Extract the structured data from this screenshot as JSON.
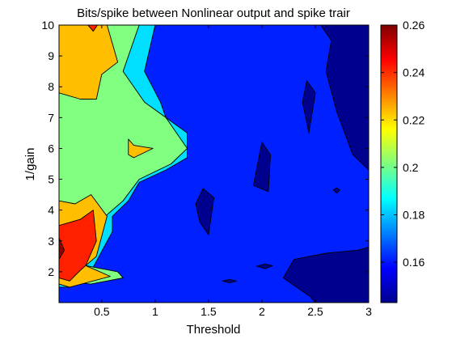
{
  "chart_data": {
    "type": "heatmap",
    "subtype": "filled-contour",
    "title": "Bits/spike between Nonlinear output and spike trair",
    "xlabel": "Threshold",
    "ylabel": "1/gain",
    "xlim": [
      0.1,
      3
    ],
    "ylim": [
      1,
      10
    ],
    "xticks": [
      "0.5",
      "1",
      "1.5",
      "2",
      "2.5",
      "3"
    ],
    "yticks": [
      "2",
      "3",
      "4",
      "5",
      "6",
      "7",
      "8",
      "9",
      "10"
    ],
    "colorbar": {
      "colormap": "jet",
      "range": [
        0.143,
        0.26
      ],
      "ticks": [
        "0.16",
        "0.18",
        "0.2",
        "0.22",
        "0.24",
        "0.26"
      ]
    },
    "levels": [
      {
        "level": 0.143,
        "color": "#00008f"
      },
      {
        "level": 0.15,
        "color": "#0020ff"
      },
      {
        "level": 0.165,
        "color": "#00dfff"
      },
      {
        "level": 0.19,
        "color": "#80ff80"
      },
      {
        "level": 0.215,
        "color": "#ffbf00"
      },
      {
        "level": 0.24,
        "color": "#ff2000"
      },
      {
        "level": 0.255,
        "color": "#8f0000"
      }
    ],
    "regions": [
      {
        "level": 0.143,
        "shape": [
          [
            2.55,
            10
          ],
          [
            3,
            10
          ],
          [
            3,
            5.3
          ],
          [
            2.85,
            5.8
          ],
          [
            2.7,
            7.2
          ],
          [
            2.6,
            8.5
          ],
          [
            2.65,
            9.5
          ]
        ]
      },
      {
        "level": 0.143,
        "shape": [
          [
            2.42,
            8.2
          ],
          [
            2.5,
            7.8
          ],
          [
            2.44,
            6.5
          ],
          [
            2.38,
            7.5
          ]
        ]
      },
      {
        "level": 0.143,
        "shape": [
          [
            2,
            6.2
          ],
          [
            2.08,
            5.8
          ],
          [
            2.06,
            4.6
          ],
          [
            1.92,
            4.8
          ]
        ]
      },
      {
        "level": 0.143,
        "shape": [
          [
            1.45,
            4.7
          ],
          [
            1.55,
            4.4
          ],
          [
            1.5,
            3.2
          ],
          [
            1.42,
            3.6
          ],
          [
            1.38,
            4.2
          ]
        ]
      },
      {
        "level": 0.143,
        "shape": [
          [
            3,
            2.8
          ],
          [
            2.9,
            2.7
          ],
          [
            2.6,
            2.6
          ],
          [
            2.3,
            2.4
          ],
          [
            2.2,
            1.8
          ],
          [
            2.45,
            1.2
          ],
          [
            2.5,
            1
          ],
          [
            3,
            1
          ]
        ]
      },
      {
        "level": 0.143,
        "shape": [
          [
            1.7,
            1.75
          ],
          [
            1.76,
            1.7
          ],
          [
            1.7,
            1.64
          ],
          [
            1.63,
            1.7
          ]
        ]
      },
      {
        "level": 0.143,
        "shape": [
          [
            2.03,
            2.25
          ],
          [
            2.1,
            2.2
          ],
          [
            2.03,
            2.1
          ],
          [
            1.95,
            2.18
          ]
        ]
      },
      {
        "level": 0.143,
        "shape": [
          [
            2.7,
            4.72
          ],
          [
            2.73,
            4.65
          ],
          [
            2.7,
            4.55
          ],
          [
            2.67,
            4.65
          ]
        ]
      },
      {
        "level": 0.165,
        "shape": [
          [
            0.1,
            10
          ],
          [
            1,
            10
          ],
          [
            0.9,
            8.5
          ],
          [
            1.05,
            7.5
          ],
          [
            1.1,
            7
          ],
          [
            1.3,
            6.5
          ],
          [
            1.3,
            6
          ],
          [
            1.3,
            5.7
          ],
          [
            1.1,
            5.3
          ],
          [
            0.85,
            4.9
          ],
          [
            0.75,
            4.3
          ],
          [
            0.6,
            3.8
          ],
          [
            0.6,
            3.3
          ],
          [
            0.35,
            1.7
          ],
          [
            0.2,
            1.5
          ],
          [
            0.1,
            1.5
          ]
        ]
      },
      {
        "level": 0.19,
        "shape": [
          [
            0.1,
            10
          ],
          [
            0.85,
            10
          ],
          [
            0.7,
            8.5
          ],
          [
            0.9,
            7.5
          ],
          [
            1.1,
            7
          ],
          [
            1.3,
            6
          ],
          [
            1.15,
            5.5
          ],
          [
            0.85,
            5
          ],
          [
            0.7,
            4.3
          ],
          [
            0.5,
            3.7
          ],
          [
            0.45,
            3
          ],
          [
            0.35,
            2.2
          ],
          [
            0.65,
            2
          ],
          [
            0.7,
            1.8
          ],
          [
            0.4,
            1.6
          ],
          [
            0.1,
            1.7
          ]
        ]
      },
      {
        "level": 0.215,
        "shape": [
          [
            0.1,
            10
          ],
          [
            0.55,
            10
          ],
          [
            0.65,
            8.8
          ],
          [
            0.5,
            8.4
          ],
          [
            0.45,
            7.6
          ],
          [
            0.3,
            7.6
          ],
          [
            0.1,
            7.8
          ]
        ]
      },
      {
        "level": 0.215,
        "shape": [
          [
            0.75,
            6.3
          ],
          [
            0.8,
            6.1
          ],
          [
            0.98,
            6
          ],
          [
            0.8,
            5.7
          ],
          [
            0.75,
            5.8
          ]
        ]
      },
      {
        "level": 0.215,
        "shape": [
          [
            0.1,
            4.3
          ],
          [
            0.25,
            4.2
          ],
          [
            0.4,
            4.5
          ],
          [
            0.55,
            3.8
          ],
          [
            0.45,
            2.5
          ],
          [
            0.35,
            2.2
          ],
          [
            0.58,
            1.85
          ],
          [
            0.2,
            1.5
          ],
          [
            0.1,
            1.6
          ]
        ]
      },
      {
        "level": 0.24,
        "shape": [
          [
            0.1,
            3.5
          ],
          [
            0.3,
            3.7
          ],
          [
            0.42,
            4
          ],
          [
            0.45,
            3
          ],
          [
            0.35,
            2.2
          ],
          [
            0.3,
            2.05
          ],
          [
            0.2,
            1.7
          ],
          [
            0.1,
            1.8
          ]
        ]
      },
      {
        "level": 0.24,
        "shape": [
          [
            0.37,
            10
          ],
          [
            0.46,
            10
          ],
          [
            0.42,
            9.8
          ]
        ]
      },
      {
        "level": 0.255,
        "shape": [
          [
            0.1,
            3.1
          ],
          [
            0.15,
            2.7
          ],
          [
            0.1,
            2.4
          ]
        ]
      }
    ]
  }
}
